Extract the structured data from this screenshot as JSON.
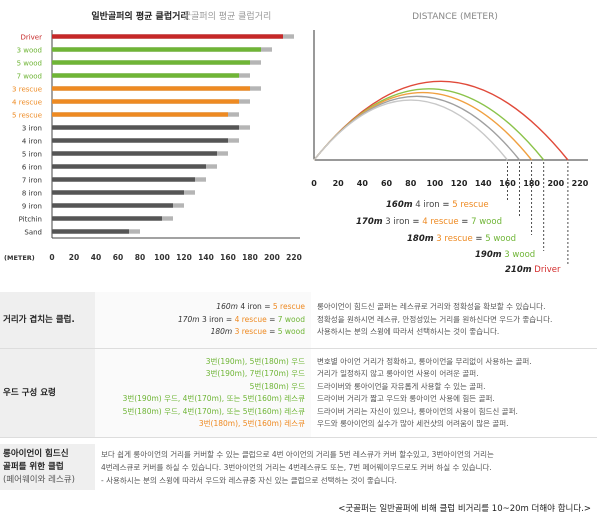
{
  "bar_chart": {
    "title_left": "일반골퍼의 평균 클럽거리",
    "title_right": "굿골퍼의 평균 클럽거리",
    "unit_label": "(METER)",
    "x_ticks": [
      "0",
      "20",
      "40",
      "60",
      "80",
      "100",
      "120",
      "140",
      "160",
      "180",
      "200",
      "220"
    ]
  },
  "arc_chart": {
    "title": "DISTANCE (METER)",
    "x_ticks": [
      "0",
      "20",
      "40",
      "60",
      "80",
      "100",
      "120",
      "140",
      "160",
      "180",
      "200",
      "220"
    ],
    "notes": [
      {
        "dist": "160m",
        "a": "4 iron",
        "eq1": "=",
        "b": "5 rescue",
        "eq2": "",
        "c": ""
      },
      {
        "dist": "170m",
        "a": "3 iron",
        "eq1": "=",
        "b": "4 rescue",
        "eq2": "=",
        "c": "7 wood"
      },
      {
        "dist": "180m",
        "a": "3 rescue",
        "eq1": "=",
        "b": "5 wood",
        "eq2": "",
        "c": ""
      },
      {
        "dist": "190m",
        "a": "3 wood",
        "eq1": "",
        "b": "",
        "eq2": "",
        "c": ""
      },
      {
        "dist": "210m",
        "a": "Driver",
        "eq1": "",
        "b": "",
        "eq2": "",
        "c": ""
      }
    ]
  },
  "chart_data": [
    {
      "type": "bar",
      "title": "일반골퍼의 평균 클럽거리",
      "xlabel": "(METER)",
      "xlim": [
        0,
        220
      ],
      "categories": [
        "Driver",
        "3 wood",
        "5 wood",
        "7 wood",
        "3 rescue",
        "4 rescue",
        "5 rescue",
        "3 iron",
        "4 iron",
        "5 iron",
        "6 iron",
        "7 iron",
        "8 iron",
        "9 iron",
        "Pitchin",
        "Sand"
      ],
      "category_colors": [
        "#c62828",
        "#6fb536",
        "#6fb536",
        "#6fb536",
        "#ee8a22",
        "#ee8a22",
        "#ee8a22",
        "#333333",
        "#333333",
        "#333333",
        "#333333",
        "#333333",
        "#333333",
        "#333333",
        "#333333",
        "#333333"
      ],
      "series": [
        {
          "name": "일반골퍼의 평균 클럽거리",
          "values": [
            210,
            190,
            180,
            170,
            180,
            170,
            160,
            170,
            160,
            150,
            140,
            130,
            120,
            110,
            100,
            70
          ],
          "colors": [
            "#c62828",
            "#6fb536",
            "#6fb536",
            "#6fb536",
            "#ee8a22",
            "#ee8a22",
            "#ee8a22",
            "#555555",
            "#555555",
            "#555555",
            "#555555",
            "#555555",
            "#555555",
            "#555555",
            "#555555",
            "#555555"
          ]
        },
        {
          "name": "굿골퍼의 평균 클럽거리",
          "values": [
            220,
            200,
            190,
            180,
            190,
            180,
            170,
            180,
            170,
            160,
            150,
            140,
            130,
            120,
            110,
            80
          ],
          "colors": [
            "#b5b5b5",
            "#b5b5b5",
            "#b5b5b5",
            "#b5b5b5",
            "#b5b5b5",
            "#b5b5b5",
            "#b5b5b5",
            "#b5b5b5",
            "#b5b5b5",
            "#b5b5b5",
            "#b5b5b5",
            "#b5b5b5",
            "#b5b5b5",
            "#b5b5b5",
            "#b5b5b5",
            "#b5b5b5"
          ]
        }
      ]
    },
    {
      "type": "line",
      "title": "DISTANCE (METER)",
      "xlim": [
        0,
        220
      ],
      "series": [
        {
          "name": "Driver",
          "x_end": 210,
          "color": "#e04a3a"
        },
        {
          "name": "3 wood",
          "x_end": 190,
          "color": "#8bc34a"
        },
        {
          "name": "180m",
          "x_end": 180,
          "color": "#f0a040"
        },
        {
          "name": "170m",
          "x_end": 170,
          "color": "#a0a0a0"
        },
        {
          "name": "160m",
          "x_end": 160,
          "color": "#c8c8c8"
        }
      ]
    }
  ],
  "table": {
    "row1": {
      "label": "거리가 겹치는 클럽.",
      "mid": [
        {
          "d": "160m",
          "a": "4 iron",
          "b": "5 rescue",
          "c": ""
        },
        {
          "d": "170m",
          "a": "3 iron",
          "b": "4 rescue",
          "c": "7 wood"
        },
        {
          "d": "180m",
          "a": "3 rescue",
          "b": "5 wood",
          "c": ""
        }
      ],
      "eq": "=",
      "right": [
        "롱아이언이 힘드신 골퍼는 레스큐로 거리와 정확성을 확보할 수 있습니다.",
        "정확성을 원하시면 레스큐, 안정성있는 거리를 원하신다면 우드가 좋습니다.",
        "사용하시는 분의 스윙에 따라서 선택하시는 것이 좋습니다."
      ]
    },
    "row2": {
      "label": "우드 구성 요령",
      "mid": [
        "3번(190m), 5번(180m) 우드",
        "3번(190m), 7번(170m) 우드",
        "5번(180m) 우드",
        "3번(190m) 우드, 4번(170m), 또는 5번(160m) 레스큐",
        "5번(180m) 우드, 4번(170m), 또는 5번(160m) 레스큐",
        "3번(180m), 5번(160m) 레스큐"
      ],
      "right": [
        "변호별 아이언 거리가 정확하고, 롱아이언을 무리없이 사용하는 골퍼.",
        "거리가 일정하지 않고 롱아이언 사용이 어려운 골퍼.",
        "드라이버와 롱아이언을 자유롭게 사용할 수 있는 골퍼.",
        "드라이버 거리가 짧고 우드와 롱아이언 사용에 힘든 골퍼.",
        "드라이버 거리는 자신이 있으나, 롱아이언의 사용이 힘드신 골퍼.",
        "우드와 롱아이언의 실수가 많아 세컨샷의 어려움이 많은 골퍼."
      ]
    },
    "row3": {
      "label1": "롱아이언이 힘드신",
      "label2": "골퍼를 위한 클럽",
      "label3": "(페어웨이와 레스큐)",
      "text": [
        "보다 쉽게 롱아이언의 거리를 커버할 수 있는 클럽으로 4번 아이언의 거리를 5번 레스큐가 커버 할수있고, 3번아이언의 거리는",
        "4번레스큐로 커버를 하실 수 있습니다. 3번아이언의 거리는 4번레스큐도 또는, 7번 페어웨이우드로도 커버 하실 수 있습니다.",
        "- 사용하시는 분의 스윙에 따라서 우드와 레스큐중 자신 있는 클럽으로 선택하는 것이 좋습니다."
      ]
    },
    "footer": "<굿골퍼는 일반골퍼에 비해 클럽 비거리를 10~20m 더해야 합니다.>"
  }
}
